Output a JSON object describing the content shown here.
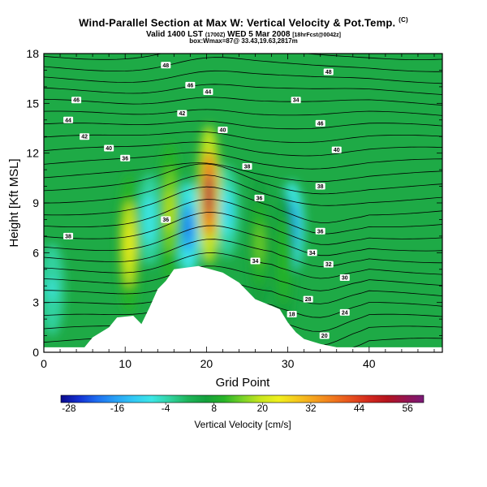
{
  "header": {
    "title": "Wind-Parallel Section at Max W: Vertical Velocity & Pot.Temp.",
    "title_mark": "(C)",
    "subtitle_main": "Valid 1400 LST",
    "subtitle_paren1": "(1700Z)",
    "subtitle_date": "WED 5 Mar 2008",
    "subtitle_paren2": "[18hrFcst@0042z]",
    "subtitle_line2": "box:Wmax=87@ 33.43,19.63,2817m"
  },
  "chart_data": {
    "type": "heatmap",
    "xlabel": "Grid Point",
    "ylabel": "Height [Kft MSL]",
    "xlim": [
      0,
      49
    ],
    "ylim": [
      0,
      18
    ],
    "x_ticks": [
      0,
      10,
      20,
      30,
      40
    ],
    "y_ticks": [
      0,
      3,
      6,
      9,
      12,
      15,
      18
    ],
    "colorbar": {
      "label": "Vertical Velocity [cm/s]",
      "min": -30,
      "max": 60,
      "ticks": [
        -28,
        -16,
        -4,
        8,
        20,
        32,
        44,
        56
      ],
      "colors": [
        "#0a0a8c",
        "#1430d2",
        "#1e6ef0",
        "#28a0f5",
        "#32c8f5",
        "#3ce6e6",
        "#32d2a0",
        "#1eb45a",
        "#14a03c",
        "#28b428",
        "#78d228",
        "#c8e61e",
        "#f0f01e",
        "#f5c81e",
        "#f5a01e",
        "#f0781e",
        "#e6501e",
        "#d2281e",
        "#b4141e",
        "#961450",
        "#7a1a78"
      ]
    },
    "updraft_cores": [
      {
        "x": 10.5,
        "z": 6.5,
        "w": 24
      },
      {
        "x": 15.5,
        "z": 8.5,
        "w": 20
      },
      {
        "x": 20.3,
        "z": 9.5,
        "w": 56
      },
      {
        "x": 26.5,
        "z": 6.5,
        "w": 14
      },
      {
        "x": 29.5,
        "z": 5.5,
        "w": 12
      }
    ],
    "downdraft_cores": [
      {
        "x": 13.0,
        "z": 8.0,
        "w": -8
      },
      {
        "x": 17.8,
        "z": 7.5,
        "w": -22
      },
      {
        "x": 22.5,
        "z": 8.5,
        "w": -10
      },
      {
        "x": 30.5,
        "z": 7.5,
        "w": -18
      },
      {
        "x": 1.0,
        "z": 3.8,
        "w": -6
      }
    ],
    "terrain": [
      {
        "x": 0,
        "z": 0.3
      },
      {
        "x": 5,
        "z": 0.3
      },
      {
        "x": 6,
        "z": 0.9
      },
      {
        "x": 8,
        "z": 1.5
      },
      {
        "x": 9,
        "z": 2.1
      },
      {
        "x": 11,
        "z": 2.2
      },
      {
        "x": 12,
        "z": 1.7
      },
      {
        "x": 13,
        "z": 2.7
      },
      {
        "x": 14,
        "z": 3.8
      },
      {
        "x": 15,
        "z": 4.3
      },
      {
        "x": 16,
        "z": 5.0
      },
      {
        "x": 19,
        "z": 5.2
      },
      {
        "x": 22,
        "z": 4.8
      },
      {
        "x": 24,
        "z": 4.2
      },
      {
        "x": 26,
        "z": 3.2
      },
      {
        "x": 29,
        "z": 2.6
      },
      {
        "x": 30,
        "z": 1.8
      },
      {
        "x": 31,
        "z": 1.2
      },
      {
        "x": 32,
        "z": 0.8
      },
      {
        "x": 34,
        "z": 0.5
      },
      {
        "x": 36,
        "z": 0.3
      },
      {
        "x": 49,
        "z": 0.3
      }
    ],
    "contour_labels": [
      {
        "text": "48",
        "x": 15.0,
        "z": 17.3
      },
      {
        "text": "46",
        "x": 18.0,
        "z": 16.1
      },
      {
        "text": "44",
        "x": 20.2,
        "z": 15.7
      },
      {
        "text": "42",
        "x": 17.0,
        "z": 14.4
      },
      {
        "text": "40",
        "x": 22.0,
        "z": 13.4
      },
      {
        "text": "38",
        "x": 25.0,
        "z": 11.2
      },
      {
        "text": "36",
        "x": 26.5,
        "z": 9.3
      },
      {
        "text": "34",
        "x": 26.0,
        "z": 5.5
      },
      {
        "text": "46",
        "x": 4.0,
        "z": 15.2
      },
      {
        "text": "44",
        "x": 3.0,
        "z": 14.0
      },
      {
        "text": "42",
        "x": 5.0,
        "z": 13.0
      },
      {
        "text": "40",
        "x": 8.0,
        "z": 12.3
      },
      {
        "text": "36",
        "x": 10.0,
        "z": 11.7
      },
      {
        "text": "36",
        "x": 15.0,
        "z": 8.0
      },
      {
        "text": "38",
        "x": 3.0,
        "z": 7.0
      },
      {
        "text": "48",
        "x": 35.0,
        "z": 16.9
      },
      {
        "text": "34",
        "x": 31.0,
        "z": 15.2
      },
      {
        "text": "46",
        "x": 34.0,
        "z": 13.8
      },
      {
        "text": "40",
        "x": 36.0,
        "z": 12.2
      },
      {
        "text": "38",
        "x": 34.0,
        "z": 10.0
      },
      {
        "text": "36",
        "x": 34.0,
        "z": 7.3
      },
      {
        "text": "34",
        "x": 33.0,
        "z": 6.0
      },
      {
        "text": "32",
        "x": 35.0,
        "z": 5.3
      },
      {
        "text": "30",
        "x": 37.0,
        "z": 4.5
      },
      {
        "text": "28",
        "x": 32.5,
        "z": 3.2
      },
      {
        "text": "24",
        "x": 37.0,
        "z": 2.4
      },
      {
        "text": "18",
        "x": 30.5,
        "z": 2.3
      },
      {
        "text": "20",
        "x": 34.5,
        "z": 1.0
      }
    ]
  }
}
